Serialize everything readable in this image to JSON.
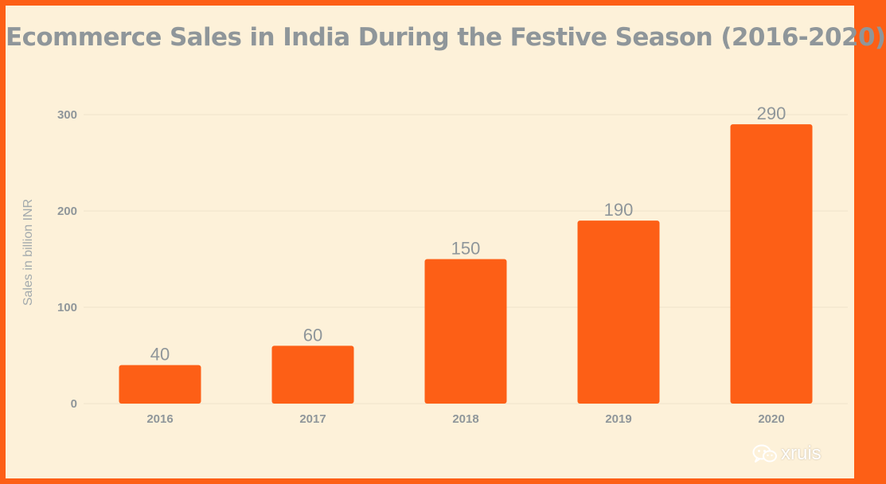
{
  "colors": {
    "border": "#fd5f16",
    "background": "#fdf1d9",
    "bar": "#fd5f16",
    "text": "#8f969a",
    "grid": "#eee3cb"
  },
  "watermark": {
    "icon": "wechat-icon",
    "text": "xruis"
  },
  "chart_data": {
    "type": "bar",
    "title": "Ecommerce Sales in India During the Festive Season (2016-2020)",
    "xlabel": "",
    "ylabel": "Sales in billion INR",
    "categories": [
      "2016",
      "2017",
      "2018",
      "2019",
      "2020"
    ],
    "values": [
      40,
      60,
      150,
      190,
      290
    ],
    "data_labels": [
      "40",
      "60",
      "150",
      "190",
      "290"
    ],
    "ylim": [
      0,
      300
    ],
    "yticks": [
      0,
      100,
      200,
      300
    ],
    "grid": true,
    "legend": "none"
  }
}
